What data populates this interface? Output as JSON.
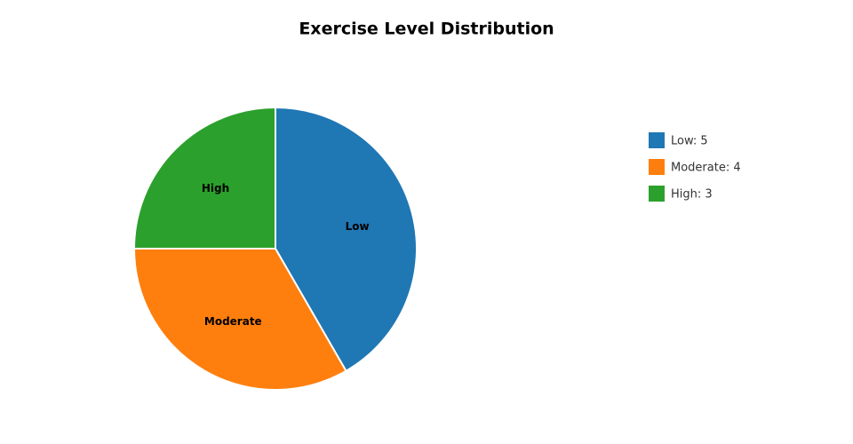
{
  "chart_data": {
    "type": "pie",
    "title": "Exercise Level Distribution",
    "categories": [
      "Low",
      "Moderate",
      "High"
    ],
    "values": [
      5,
      4,
      3
    ],
    "colors": [
      "#1f77b4",
      "#ff7f0e",
      "#2ca02c"
    ],
    "legend_labels": [
      "Low: 5",
      "Moderate: 4",
      "High: 3"
    ],
    "legend": "right",
    "direction": "clockwise"
  }
}
